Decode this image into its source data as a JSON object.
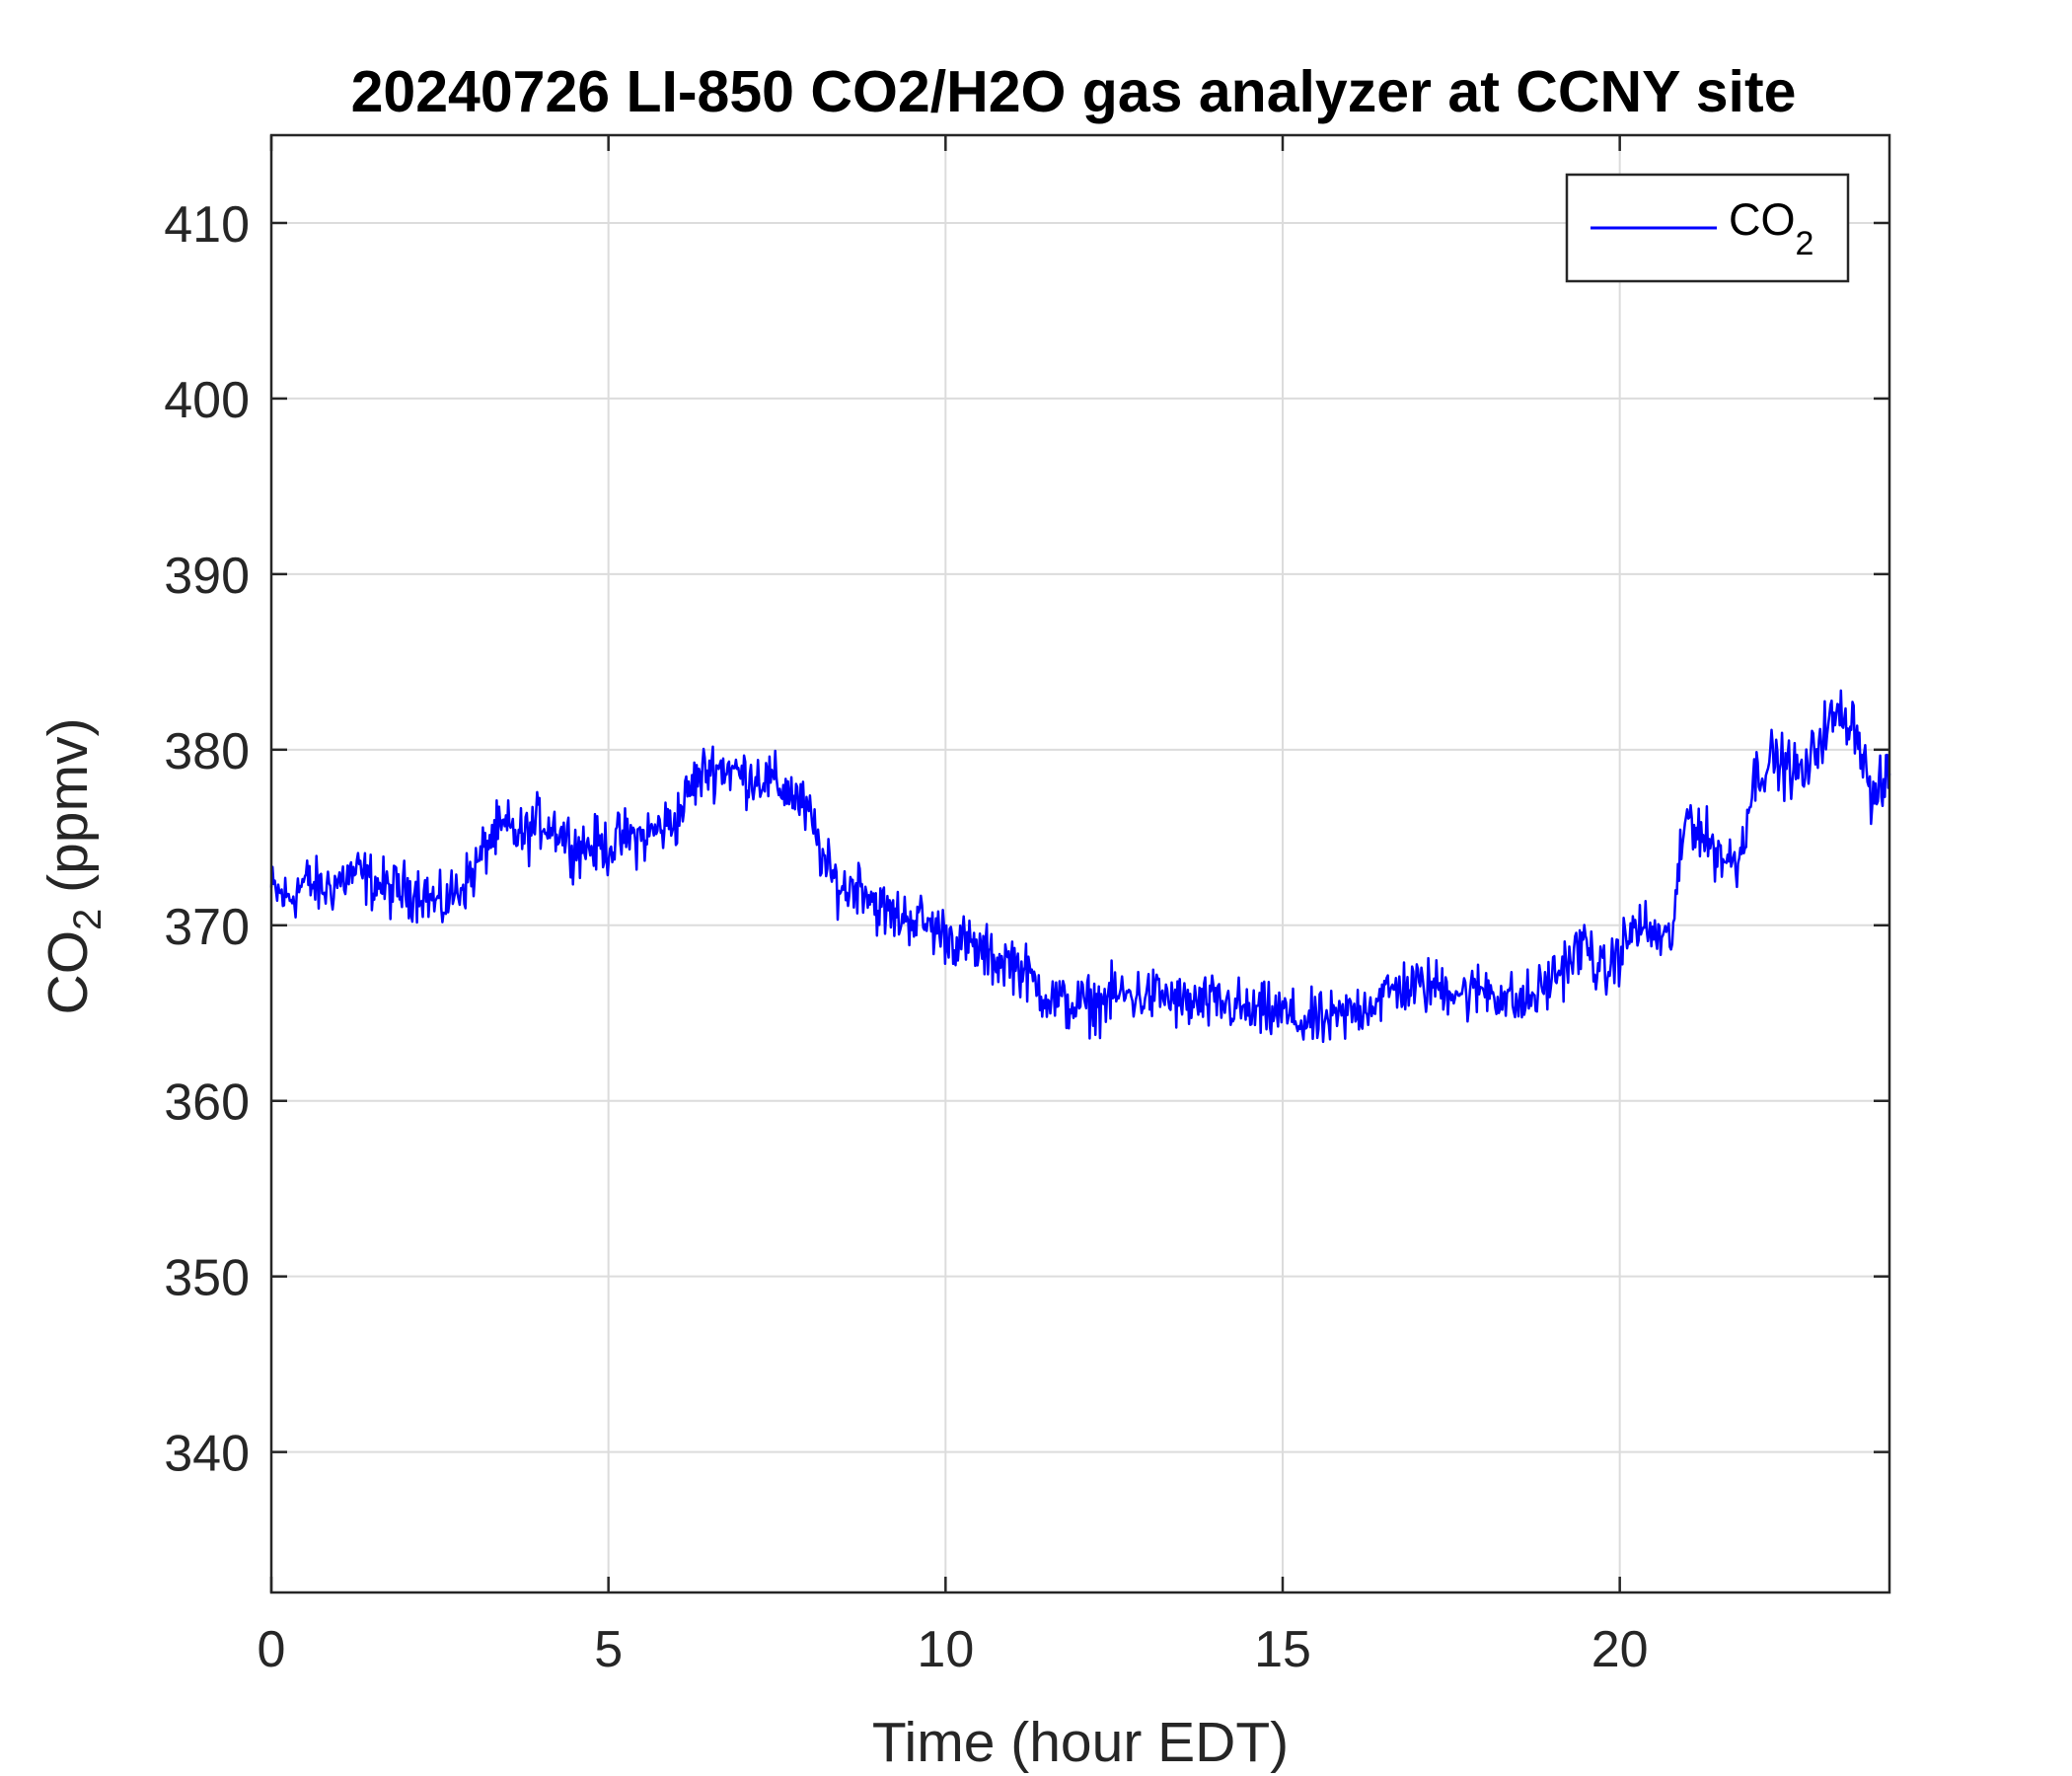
{
  "chart_data": {
    "type": "line",
    "title": "20240726 LI-850 CO2/H2O gas analyzer at CCNY site",
    "xlabel": "Time (hour EDT)",
    "ylabel_main": "CO",
    "ylabel_sub": "2",
    "ylabel_rest": " (ppmv)",
    "xlim": [
      0,
      24
    ],
    "ylim": [
      332,
      415
    ],
    "xticks": [
      0,
      5,
      10,
      15,
      20
    ],
    "yticks": [
      340,
      350,
      360,
      370,
      380,
      390,
      400,
      410
    ],
    "xtick_labels": [
      "0",
      "5",
      "10",
      "15",
      "20"
    ],
    "ytick_labels": [
      "340",
      "350",
      "360",
      "370",
      "380",
      "390",
      "400",
      "410"
    ],
    "grid": true,
    "legend_position": "top-right",
    "series": [
      {
        "name_main": "CO",
        "name_sub": "2",
        "color": "#0000ff",
        "x": [
          0,
          0.25,
          0.5,
          0.75,
          1,
          1.25,
          1.5,
          1.75,
          2,
          2.25,
          2.5,
          2.75,
          3,
          3.25,
          3.5,
          3.75,
          4,
          4.25,
          4.5,
          4.75,
          5,
          5.25,
          5.5,
          5.75,
          6,
          6.25,
          6.5,
          6.75,
          7,
          7.25,
          7.5,
          7.75,
          8,
          8.25,
          8.5,
          8.75,
          9,
          9.25,
          9.5,
          9.75,
          10,
          10.25,
          10.5,
          10.75,
          11,
          11.25,
          11.5,
          11.75,
          12,
          12.25,
          12.5,
          12.75,
          13,
          13.25,
          13.5,
          13.75,
          14,
          14.25,
          14.5,
          14.75,
          15,
          15.25,
          15.5,
          15.75,
          16,
          16.25,
          16.5,
          16.75,
          17,
          17.25,
          17.5,
          17.75,
          18,
          18.25,
          18.5,
          18.75,
          19,
          19.25,
          19.5,
          19.75,
          20,
          20.25,
          20.5,
          20.75,
          21,
          21.25,
          21.5,
          21.75,
          22,
          22.25,
          22.5,
          22.75,
          23,
          23.25,
          23.5,
          23.75,
          24
        ],
        "y": [
          372,
          371.5,
          372.5,
          372,
          372.5,
          373,
          372.5,
          372,
          372,
          372,
          371,
          372,
          373,
          375,
          375.5,
          375,
          376,
          375.5,
          374.5,
          374.5,
          374.5,
          375,
          375,
          375.5,
          376,
          378,
          379,
          379,
          378.5,
          378.5,
          378,
          377.5,
          376,
          373,
          372,
          372.5,
          371,
          370.5,
          370.5,
          370,
          369.5,
          369,
          368.5,
          368,
          368,
          367,
          366,
          365.5,
          365.5,
          365.5,
          366,
          366,
          366,
          366,
          365.5,
          365.5,
          365.5,
          365.5,
          365,
          365,
          365,
          364.5,
          364.5,
          364.5,
          365,
          365.5,
          366,
          366.5,
          366.5,
          366.5,
          366.5,
          366,
          366.5,
          366,
          365.5,
          366,
          367,
          368,
          369,
          367,
          368.5,
          370,
          369.5,
          369,
          376.5,
          375,
          374,
          373.5,
          378.5,
          379.5,
          379,
          378.5,
          381,
          382,
          381.5,
          377,
          378.5
        ]
      }
    ]
  }
}
